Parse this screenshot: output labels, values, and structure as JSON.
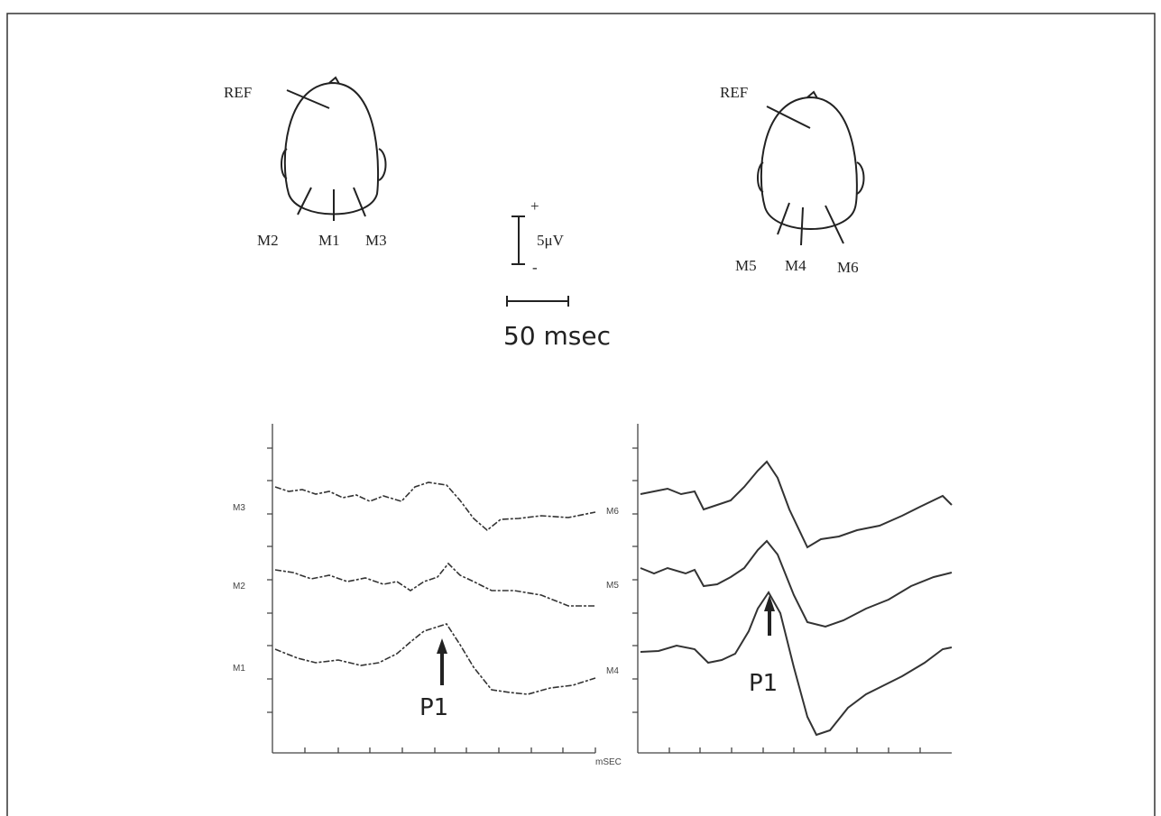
{
  "left_head": {
    "ref": "REF",
    "electrodes": [
      "M2",
      "M1",
      "M3"
    ]
  },
  "right_head": {
    "ref": "REF",
    "electrodes": [
      "M5",
      "M4",
      "M6"
    ]
  },
  "scale": {
    "plus": "+",
    "amplitude": "5μV",
    "minus": "-",
    "time": "50 msec"
  },
  "left_plot": {
    "trace_labels": [
      "M3",
      "M2",
      "M1"
    ],
    "peak_label": "P1",
    "x_unit": "mSEC"
  },
  "right_plot": {
    "trace_labels": [
      "M6",
      "M5",
      "M4"
    ],
    "peak_label": "P1"
  }
}
